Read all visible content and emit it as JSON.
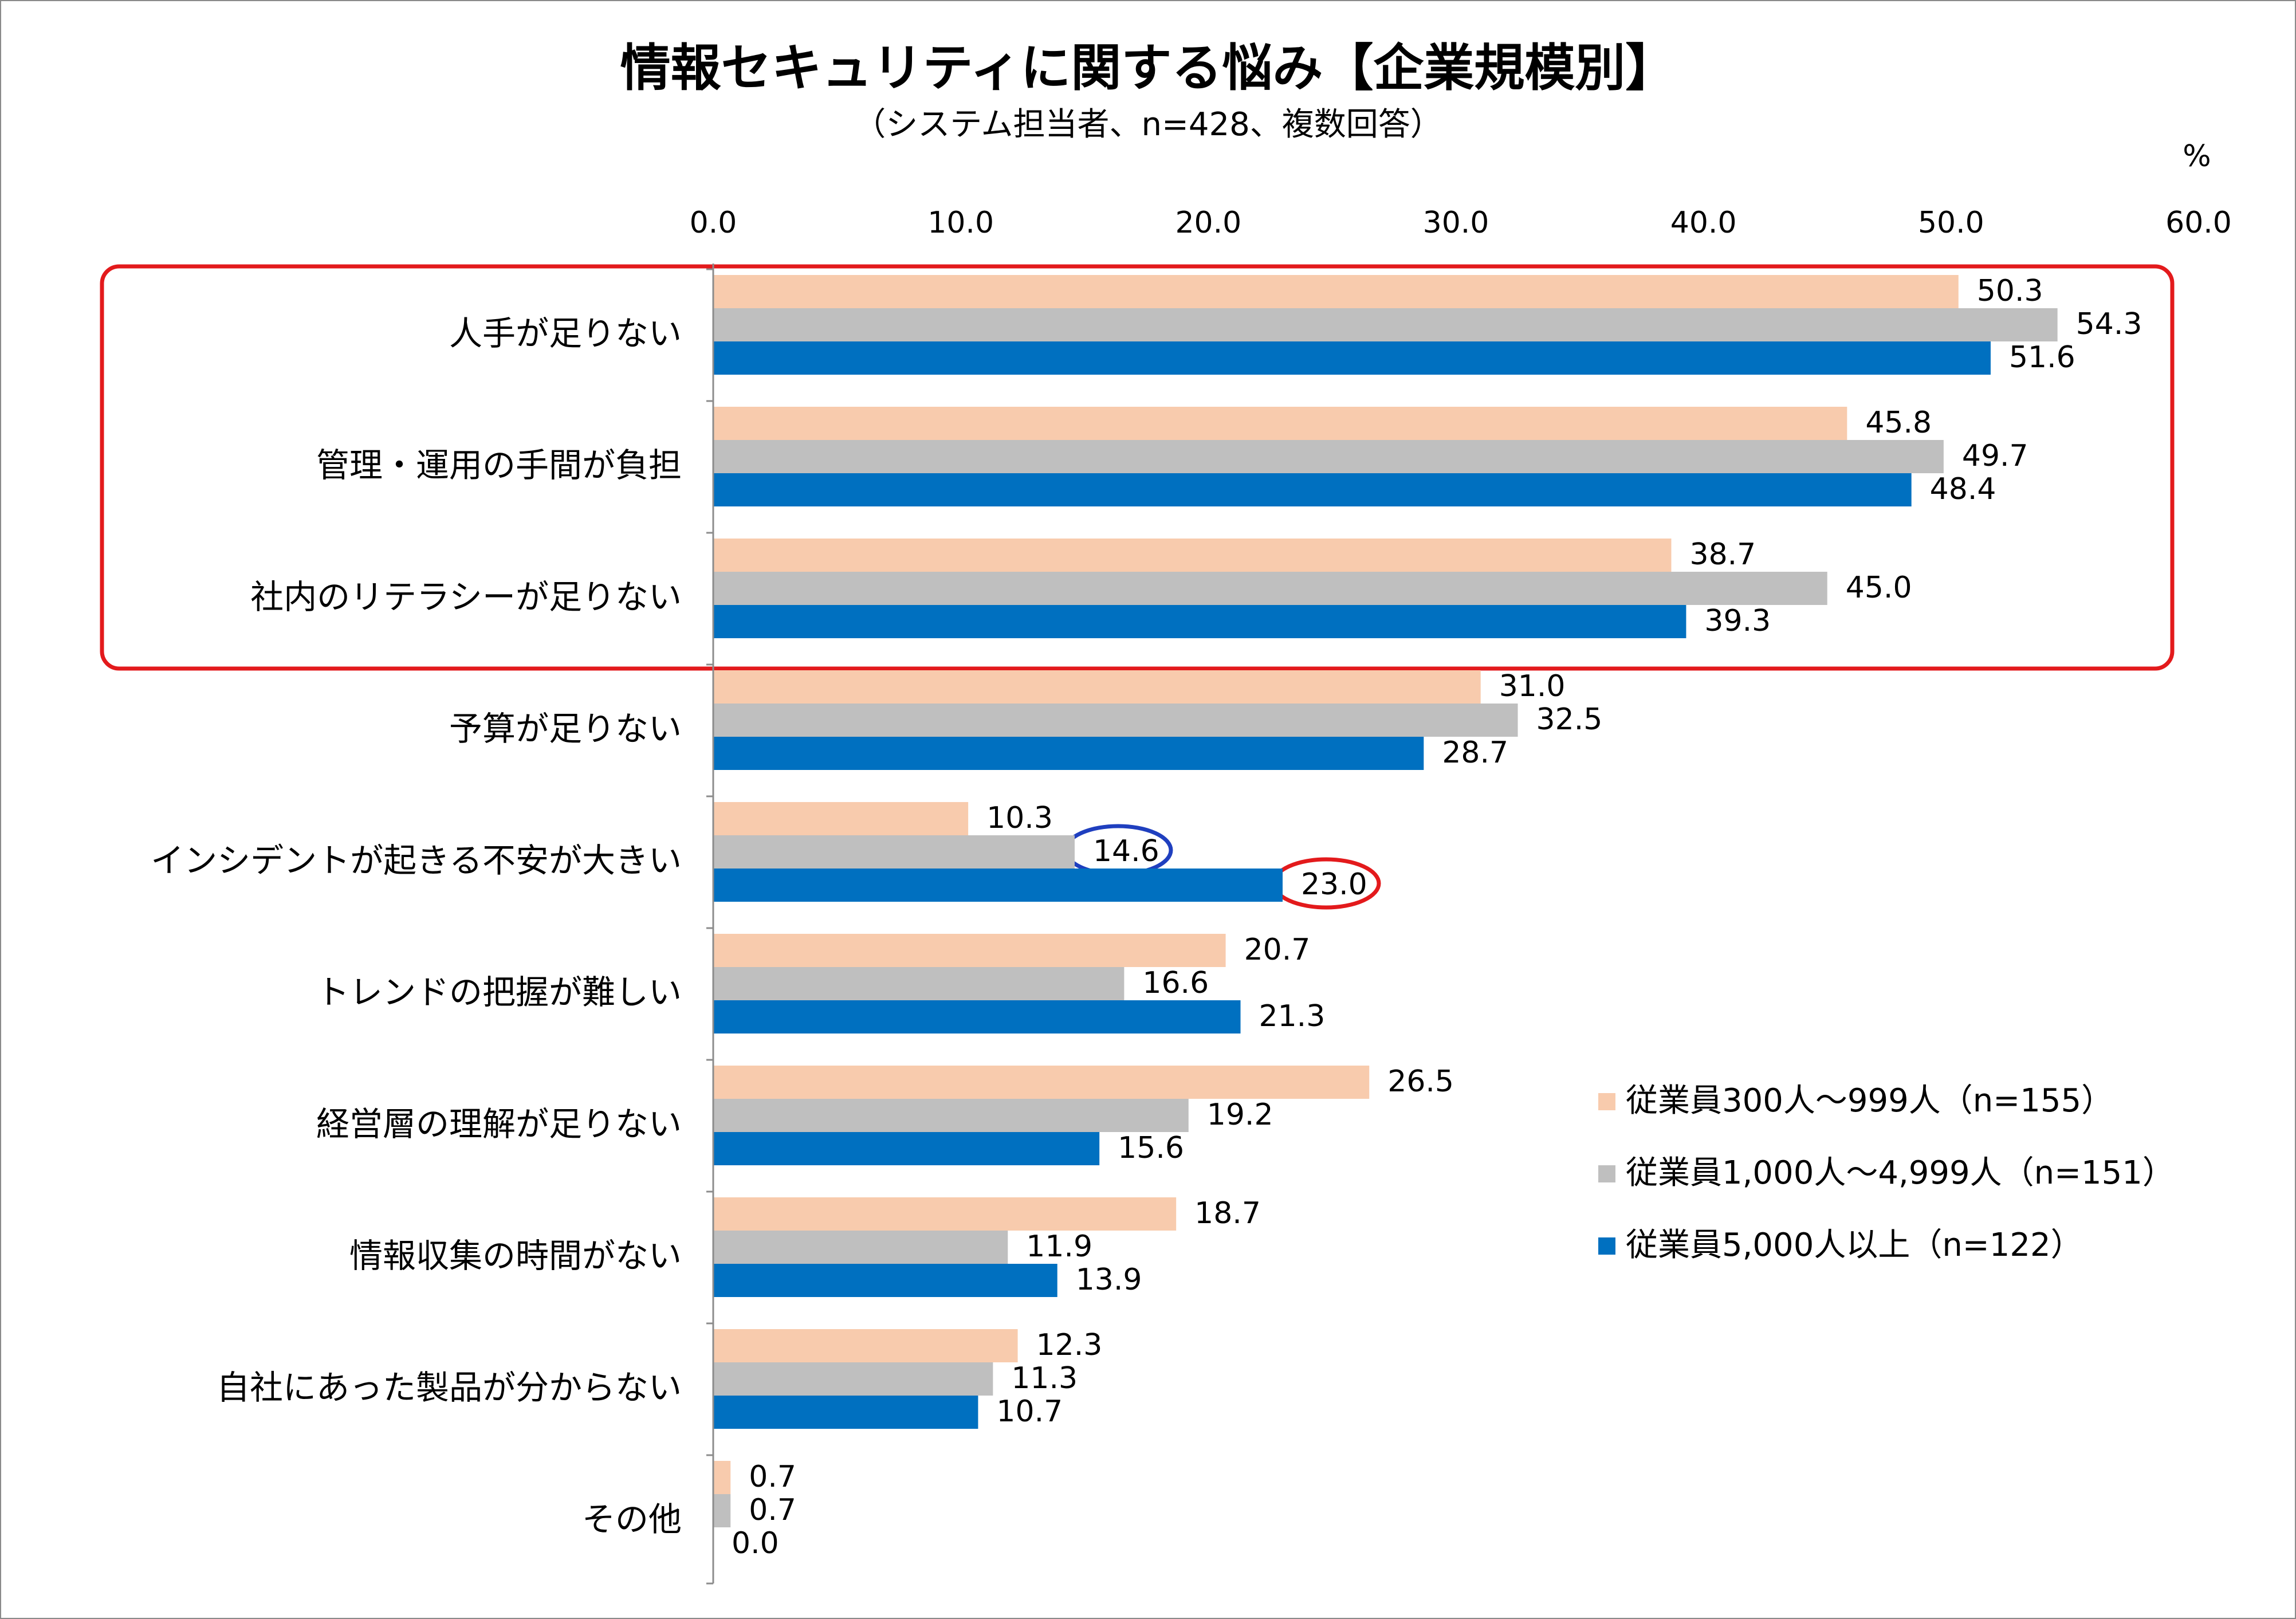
{
  "title": "情報セキュリティに関する悩み【企業規模別】",
  "subtitle": "（システム担当者、n=428、複数回答）",
  "unit_label": "%",
  "chart_data": {
    "type": "bar",
    "orientation": "horizontal",
    "title": "情報セキュリティに関する悩み【企業規模別】",
    "subtitle": "（システム担当者、n=428、複数回答）",
    "xlabel": "",
    "ylabel": "",
    "unit": "%",
    "xlim": [
      0,
      60
    ],
    "x_ticks": [
      "0.0",
      "10.0",
      "20.0",
      "30.0",
      "40.0",
      "50.0",
      "60.0"
    ],
    "axis_position": "top",
    "grid": false,
    "legend_position": "right",
    "categories": [
      "人手が足りない",
      "管理・運用の手間が負担",
      "社内のリテラシーが足りない",
      "予算が足りない",
      "インシデントが起きる不安が大きい",
      "トレンドの把握が難しい",
      "経営層の理解が足りない",
      "情報収集の時間がない",
      "自社にあった製品が分からない",
      "その他"
    ],
    "series": [
      {
        "name": "従業員300人～999人（n=155）",
        "color": "#F8CBAD",
        "values": [
          50.3,
          45.8,
          38.7,
          31.0,
          10.3,
          20.7,
          26.5,
          18.7,
          12.3,
          0.7
        ]
      },
      {
        "name": "従業員1,000人～4,999人（n=151）",
        "color": "#BFBFBF",
        "values": [
          54.3,
          49.7,
          45.0,
          32.5,
          14.6,
          16.6,
          19.2,
          11.9,
          11.3,
          0.7
        ]
      },
      {
        "name": "従業員5,000人以上（n=122）",
        "color": "#0070C0",
        "values": [
          51.6,
          48.4,
          39.3,
          28.7,
          23.0,
          21.3,
          15.6,
          13.9,
          10.7,
          0.0
        ]
      }
    ],
    "highlights": [
      {
        "kind": "rounded-rectangle",
        "color": "#E31A1C",
        "categories": [
          "人手が足りない",
          "管理・運用の手間が負担",
          "社内のリテラシーが足りない"
        ]
      },
      {
        "kind": "ellipse",
        "color": "#1F3FBF",
        "category": "インシデントが起きる不安が大きい",
        "series": "従業員1,000人～4,999人（n=151）",
        "value": 14.6
      },
      {
        "kind": "ellipse",
        "color": "#E31A1C",
        "category": "インシデントが起きる不安が大きい",
        "series": "従業員5,000人以上（n=122）",
        "value": 23.0
      }
    ]
  }
}
